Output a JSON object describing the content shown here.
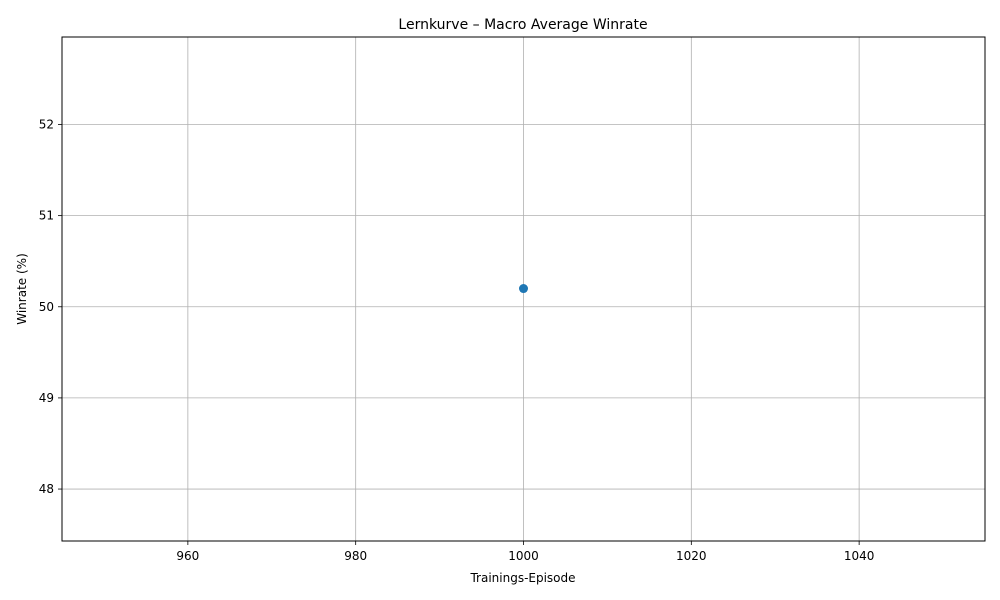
{
  "chart_data": {
    "type": "scatter",
    "title": "Lernkurve – Macro Average Winrate",
    "xlabel": "Trainings-Episode",
    "ylabel": "Winrate (%)",
    "xlim": [
      945,
      1055
    ],
    "ylim": [
      47.43,
      52.96
    ],
    "x_ticks": [
      960,
      980,
      1000,
      1020,
      1040
    ],
    "y_ticks": [
      48,
      49,
      50,
      51,
      52
    ],
    "grid": true,
    "marker_color": "#1f77b4",
    "points": [
      {
        "x": 1000,
        "y": 50.2
      }
    ]
  }
}
